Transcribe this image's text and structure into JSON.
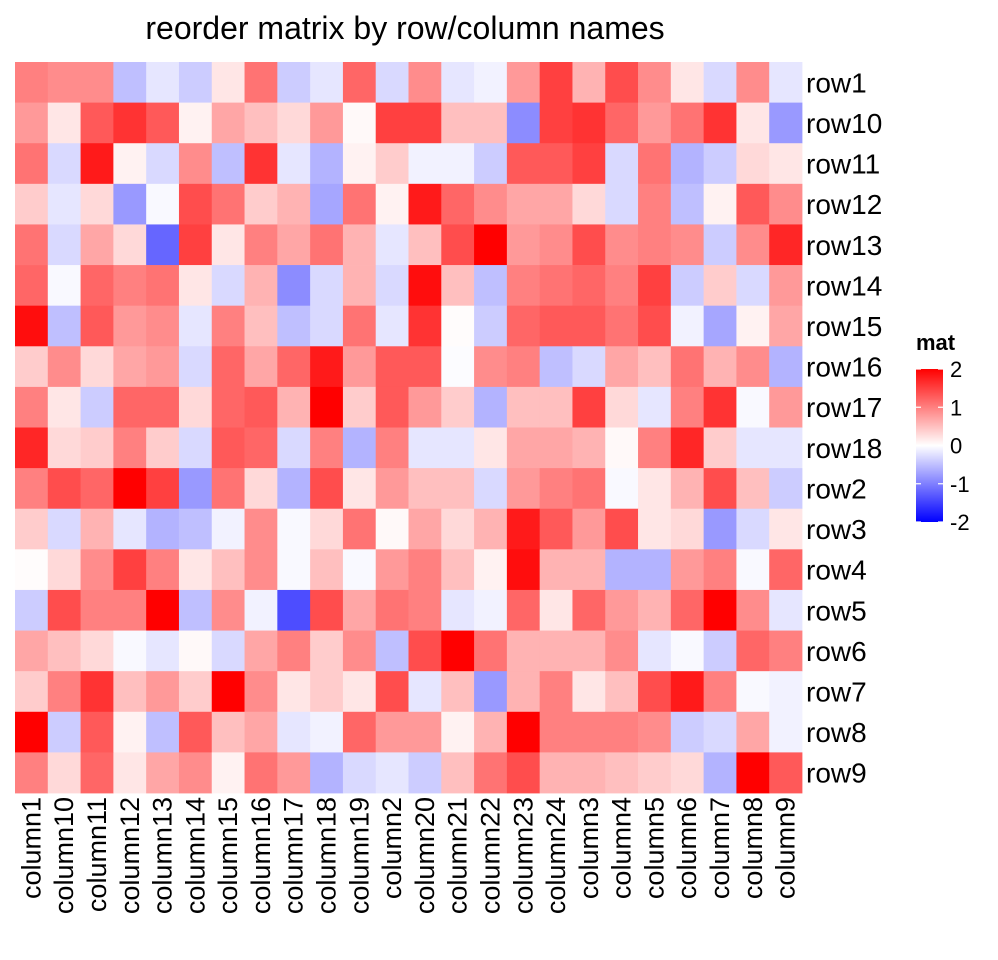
{
  "chart_data": {
    "type": "heatmap",
    "title": "reorder matrix by row/column names",
    "rows": [
      "row1",
      "row10",
      "row11",
      "row12",
      "row13",
      "row14",
      "row15",
      "row16",
      "row17",
      "row18",
      "row2",
      "row3",
      "row4",
      "row5",
      "row6",
      "row7",
      "row8",
      "row9"
    ],
    "columns": [
      "column1",
      "column10",
      "column11",
      "column12",
      "column13",
      "column14",
      "column15",
      "column16",
      "column17",
      "column18",
      "column19",
      "column2",
      "column20",
      "column21",
      "column22",
      "column23",
      "column24",
      "column3",
      "column4",
      "column5",
      "column6",
      "column7",
      "column8",
      "column9"
    ],
    "values": [
      [
        1.0,
        0.9,
        0.9,
        -0.5,
        -0.2,
        -0.4,
        0.2,
        1.1,
        -0.4,
        -0.2,
        1.2,
        -0.3,
        0.9,
        -0.2,
        -0.1,
        0.8,
        1.5,
        0.6,
        1.4,
        0.9,
        0.2,
        -0.3,
        0.9,
        -0.2
      ],
      [
        0.8,
        0.2,
        1.3,
        1.6,
        1.3,
        0.1,
        0.7,
        0.5,
        0.3,
        0.8,
        0.05,
        1.5,
        1.5,
        0.5,
        0.5,
        -0.9,
        1.5,
        1.6,
        1.2,
        0.8,
        1.1,
        1.6,
        0.2,
        -0.8
      ],
      [
        1.1,
        -0.3,
        1.8,
        0.1,
        -0.3,
        0.9,
        -0.5,
        1.6,
        -0.2,
        -0.6,
        0.1,
        0.4,
        -0.1,
        -0.1,
        -0.4,
        1.3,
        1.3,
        1.5,
        -0.3,
        1.1,
        -0.6,
        -0.4,
        0.3,
        0.2
      ],
      [
        0.4,
        -0.2,
        0.3,
        -0.8,
        -0.05,
        1.4,
        1.1,
        0.4,
        0.6,
        -0.7,
        1.1,
        0.1,
        1.8,
        1.2,
        0.9,
        0.7,
        0.7,
        0.3,
        -0.3,
        1.0,
        -0.5,
        0.1,
        1.3,
        0.9
      ],
      [
        1.1,
        -0.3,
        0.7,
        0.3,
        -1.2,
        1.5,
        0.2,
        1.0,
        0.7,
        1.1,
        0.6,
        -0.2,
        0.5,
        1.4,
        2.0,
        0.8,
        0.9,
        1.4,
        0.9,
        1.0,
        0.9,
        -0.4,
        0.9,
        1.7
      ],
      [
        1.2,
        -0.05,
        1.2,
        1.0,
        1.1,
        0.2,
        -0.3,
        0.6,
        -0.9,
        -0.3,
        0.6,
        -0.3,
        1.9,
        0.5,
        -0.5,
        1.0,
        1.1,
        1.2,
        1.0,
        1.5,
        -0.4,
        0.4,
        -0.3,
        0.8
      ],
      [
        1.9,
        -0.5,
        1.3,
        0.8,
        0.9,
        -0.2,
        1.0,
        0.5,
        -0.5,
        -0.3,
        1.1,
        -0.2,
        1.6,
        0.02,
        -0.4,
        1.2,
        1.3,
        1.3,
        1.1,
        1.4,
        -0.1,
        -0.7,
        0.1,
        0.7
      ],
      [
        0.4,
        0.9,
        0.3,
        0.7,
        0.8,
        -0.3,
        1.2,
        0.7,
        1.2,
        1.8,
        0.8,
        1.3,
        1.3,
        -0.02,
        0.9,
        1.0,
        -0.5,
        -0.3,
        0.7,
        0.5,
        1.1,
        0.6,
        0.9,
        -0.6
      ],
      [
        1.0,
        0.2,
        -0.4,
        1.2,
        1.2,
        0.3,
        1.2,
        1.3,
        0.6,
        2.2,
        0.4,
        1.3,
        0.8,
        0.4,
        -0.6,
        0.5,
        0.5,
        1.5,
        0.3,
        -0.2,
        1.0,
        1.6,
        -0.05,
        0.8
      ],
      [
        1.7,
        0.3,
        0.4,
        1.0,
        0.4,
        -0.3,
        1.3,
        1.2,
        -0.3,
        1.0,
        -0.6,
        1.0,
        -0.2,
        -0.2,
        0.2,
        0.7,
        0.7,
        0.6,
        0.05,
        1.0,
        1.7,
        0.4,
        -0.2,
        -0.2
      ],
      [
        1.0,
        1.4,
        1.2,
        2.3,
        1.5,
        -0.8,
        1.1,
        0.3,
        -0.6,
        1.4,
        0.2,
        0.8,
        0.5,
        0.5,
        -0.3,
        0.8,
        1.0,
        1.1,
        -0.05,
        0.2,
        0.6,
        1.4,
        0.5,
        -0.4
      ],
      [
        0.4,
        -0.3,
        0.6,
        -0.2,
        -0.6,
        -0.5,
        -0.1,
        0.9,
        -0.05,
        0.3,
        1.1,
        0.05,
        0.7,
        0.3,
        0.6,
        1.8,
        1.3,
        0.8,
        1.4,
        0.2,
        0.3,
        -0.8,
        -0.3,
        0.2
      ],
      [
        0.02,
        0.3,
        0.9,
        1.5,
        1.0,
        0.2,
        0.5,
        0.9,
        -0.05,
        0.5,
        -0.05,
        0.8,
        1.0,
        0.5,
        0.1,
        1.9,
        0.6,
        0.6,
        -0.6,
        -0.6,
        0.8,
        1.0,
        -0.05,
        1.2
      ],
      [
        -0.4,
        1.4,
        1.0,
        1.0,
        2.2,
        -0.5,
        0.9,
        -0.1,
        -1.4,
        1.4,
        0.7,
        1.1,
        1.0,
        -0.2,
        -0.1,
        1.2,
        0.2,
        1.2,
        0.8,
        0.6,
        1.2,
        2.3,
        0.9,
        -0.2
      ],
      [
        0.7,
        0.5,
        0.3,
        -0.05,
        -0.2,
        0.05,
        -0.3,
        0.7,
        1.0,
        0.4,
        0.9,
        -0.5,
        1.4,
        2.0,
        1.1,
        0.6,
        0.6,
        0.6,
        0.9,
        -0.2,
        -0.05,
        -0.4,
        1.2,
        1.0
      ],
      [
        0.4,
        1.0,
        1.6,
        0.5,
        0.8,
        0.4,
        2.2,
        0.9,
        0.2,
        0.4,
        0.2,
        1.4,
        -0.2,
        0.5,
        -0.8,
        0.6,
        1.0,
        0.2,
        0.5,
        1.4,
        1.8,
        1.0,
        -0.05,
        -0.1
      ],
      [
        2.3,
        -0.4,
        1.3,
        0.1,
        -0.5,
        1.3,
        0.5,
        0.7,
        -0.2,
        -0.1,
        1.2,
        0.8,
        0.8,
        0.1,
        0.6,
        2.0,
        1.0,
        1.0,
        1.0,
        0.9,
        -0.4,
        -0.3,
        0.7,
        -0.1
      ],
      [
        1.0,
        0.3,
        1.2,
        0.2,
        0.7,
        0.9,
        0.1,
        1.1,
        0.8,
        -0.6,
        -0.3,
        -0.2,
        -0.4,
        0.5,
        1.1,
        1.4,
        0.6,
        0.6,
        0.5,
        0.4,
        0.3,
        -0.6,
        2.0,
        1.3
      ]
    ],
    "color_scale": {
      "name": "mat",
      "breaks": [
        -2,
        -1,
        0,
        1,
        2
      ],
      "low": "#0000FF",
      "mid": "#FFFFFF",
      "high": "#FF0000"
    }
  }
}
